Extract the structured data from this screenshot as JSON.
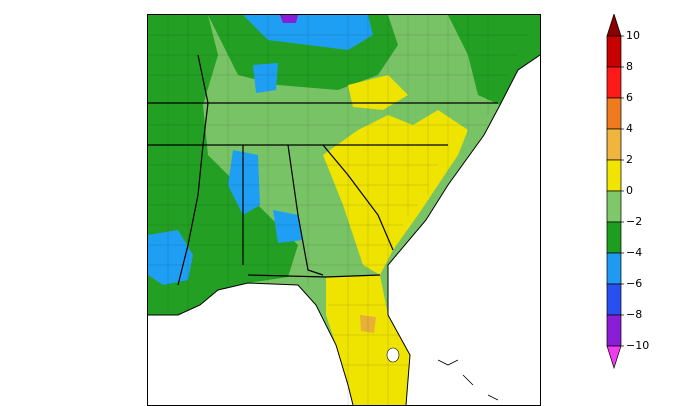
{
  "map": {
    "region": "Southeastern United States",
    "legend": {
      "levels": [
        "10",
        "8",
        "6",
        "4",
        "2",
        "0",
        "−2",
        "−4",
        "−6",
        "−8",
        "−10"
      ],
      "colors": [
        "#8b0000",
        "#c80000",
        "#ff1a1a",
        "#f07a1e",
        "#f0b53c",
        "#f0e400",
        "#7ec86a",
        "#1e9e1e",
        "#1e9bf0",
        "#2850f0",
        "#8a1ed6",
        "#f03cf0"
      ]
    },
    "fill_colors": {
      "green_light": "#79c367",
      "green_dark": "#23a023",
      "yellow": "#efe300",
      "blue": "#1f9ff3",
      "purple": "#8a1ed6",
      "orange": "#e8b037"
    }
  }
}
